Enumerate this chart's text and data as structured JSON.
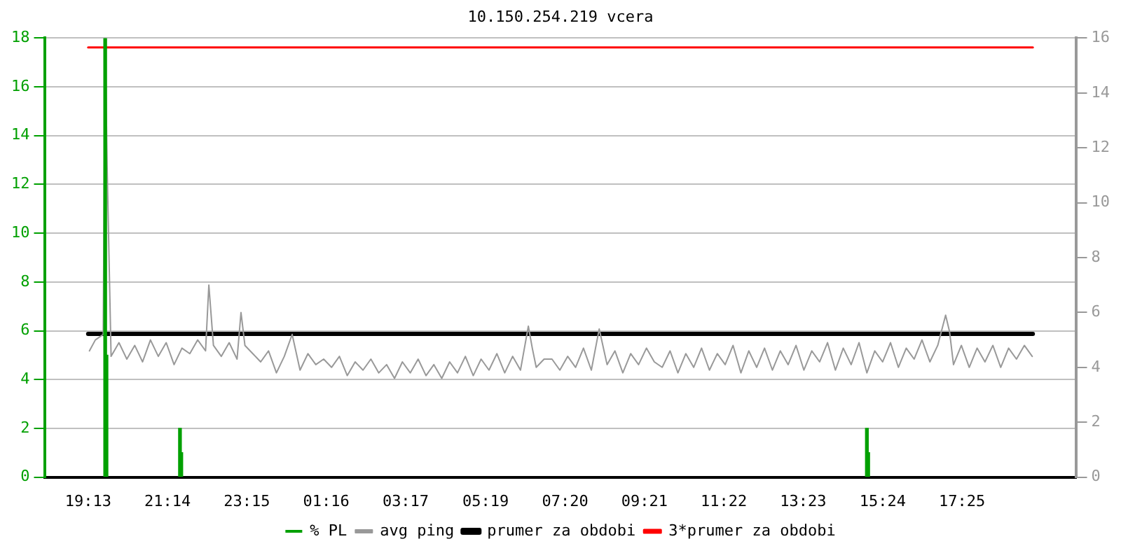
{
  "chart_data": {
    "type": "line",
    "title": "10.150.254.219 vcera",
    "xlim": [
      "--01-01T19:13",
      "--01-02T19:13"
    ],
    "xticks": [
      {
        "value": "--01-01T19:13",
        "label": "19:13"
      },
      {
        "value": "--01-01T21:14",
        "label": "21:14"
      },
      {
        "value": "--01-01T23:15",
        "label": "23:15"
      },
      {
        "value": "--01-02T01:16",
        "label": "01:16"
      },
      {
        "value": "--01-02T03:17",
        "label": "03:17"
      },
      {
        "value": "--01-02T05:19",
        "label": "05:19"
      },
      {
        "value": "--01-02T07:20",
        "label": "07:20"
      },
      {
        "value": "--01-02T09:21",
        "label": "09:21"
      },
      {
        "value": "--01-02T11:22",
        "label": "11:22"
      },
      {
        "value": "--01-02T13:23",
        "label": "13:23"
      },
      {
        "value": "--01-02T15:24",
        "label": "15:24"
      },
      {
        "value": "--01-02T17:25",
        "label": "17:25"
      }
    ],
    "ylim": [
      0,
      18
    ],
    "yticks": [
      0,
      2,
      4,
      6,
      8,
      10,
      12,
      14,
      16,
      18
    ],
    "y2lim": [
      0,
      16
    ],
    "y2ticks": [
      0,
      2,
      4,
      6,
      8,
      10,
      12,
      14,
      16
    ],
    "grid": "y",
    "legend": "bottom",
    "series": [
      {
        "name": "% PL",
        "type": "bar",
        "color": "#00a000",
        "x": [
          "--01-01T19:39",
          "--01-01T19:41",
          "--01-01T21:33",
          "--01-01T21:35",
          "--01-02T15:00",
          "--01-02T15:02"
        ],
        "values": [
          18,
          5,
          2,
          1,
          2,
          1
        ]
      },
      {
        "name": "avg ping",
        "axis": "y2",
        "color": "#999999",
        "x": [
          "--01-01T19:15",
          "--01-01T19:24",
          "--01-01T19:36",
          "--01-01T19:39",
          "--01-01T19:42",
          "--01-01T19:48",
          "--01-01T20:00",
          "--01-01T20:12",
          "--01-01T20:24",
          "--01-01T20:36",
          "--01-01T20:48",
          "--01-01T21:00",
          "--01-01T21:12",
          "--01-01T21:24",
          "--01-01T21:36",
          "--01-01T21:48",
          "--01-01T22:00",
          "--01-01T22:12",
          "--01-01T22:17",
          "--01-01T22:19",
          "--01-01T22:24",
          "--01-01T22:36",
          "--01-01T22:48",
          "--01-01T23:00",
          "--01-01T23:06",
          "--01-01T23:12",
          "--01-01T23:24",
          "--01-01T23:36",
          "--01-01T23:48",
          "--01-02T00:00",
          "--01-02T00:12",
          "--01-02T00:24",
          "--01-02T00:36",
          "--01-02T00:48",
          "--01-02T01:00",
          "--01-02T01:12",
          "--01-02T01:24",
          "--01-02T01:36",
          "--01-02T01:48",
          "--01-02T02:00",
          "--01-02T02:12",
          "--01-02T02:24",
          "--01-02T02:36",
          "--01-02T02:48",
          "--01-02T03:00",
          "--01-02T03:12",
          "--01-02T03:24",
          "--01-02T03:36",
          "--01-02T03:48",
          "--01-02T04:00",
          "--01-02T04:12",
          "--01-02T04:24",
          "--01-02T04:36",
          "--01-02T04:48",
          "--01-02T05:00",
          "--01-02T05:12",
          "--01-02T05:24",
          "--01-02T05:36",
          "--01-02T05:48",
          "--01-02T06:00",
          "--01-02T06:12",
          "--01-02T06:24",
          "--01-02T06:30",
          "--01-02T06:36",
          "--01-02T06:48",
          "--01-02T07:00",
          "--01-02T07:12",
          "--01-02T07:24",
          "--01-02T07:36",
          "--01-02T07:48",
          "--01-02T08:00",
          "--01-02T08:12",
          "--01-02T08:24",
          "--01-02T08:36",
          "--01-02T08:48",
          "--01-02T09:00",
          "--01-02T09:12",
          "--01-02T09:24",
          "--01-02T09:36",
          "--01-02T09:48",
          "--01-02T10:00",
          "--01-02T10:12",
          "--01-02T10:24",
          "--01-02T10:36",
          "--01-02T10:48",
          "--01-02T11:00",
          "--01-02T11:12",
          "--01-02T11:24",
          "--01-02T11:36",
          "--01-02T11:48",
          "--01-02T12:00",
          "--01-02T12:12",
          "--01-02T12:24",
          "--01-02T12:36",
          "--01-02T12:48",
          "--01-02T13:00",
          "--01-02T13:12",
          "--01-02T13:24",
          "--01-02T13:36",
          "--01-02T13:48",
          "--01-02T14:00",
          "--01-02T14:12",
          "--01-02T14:24",
          "--01-02T14:36",
          "--01-02T14:48",
          "--01-02T15:00",
          "--01-02T15:12",
          "--01-02T15:24",
          "--01-02T15:36",
          "--01-02T15:48",
          "--01-02T16:00",
          "--01-02T16:12",
          "--01-02T16:24",
          "--01-02T16:36",
          "--01-02T16:48",
          "--01-02T17:00",
          "--01-02T17:06",
          "--01-02T17:12",
          "--01-02T17:24",
          "--01-02T17:36",
          "--01-02T17:48",
          "--01-02T18:00",
          "--01-02T18:12",
          "--01-02T18:24",
          "--01-02T18:36",
          "--01-02T18:48",
          "--01-02T19:00",
          "--01-02T19:12"
        ],
        "values": [
          4.6,
          5.0,
          5.2,
          16,
          11.3,
          4.4,
          4.9,
          4.3,
          4.8,
          4.2,
          5.0,
          4.4,
          4.9,
          4.1,
          4.7,
          4.5,
          5.0,
          4.6,
          7.0,
          7.0,
          4.8,
          4.4,
          4.9,
          4.3,
          6.0,
          4.8,
          4.5,
          4.2,
          4.6,
          3.8,
          4.4,
          5.2,
          3.9,
          4.5,
          4.1,
          4.3,
          4.0,
          4.4,
          3.7,
          4.2,
          3.9,
          4.3,
          3.8,
          4.1,
          3.6,
          4.2,
          3.8,
          4.3,
          3.7,
          4.1,
          3.6,
          4.2,
          3.8,
          4.4,
          3.7,
          4.3,
          3.9,
          4.5,
          3.8,
          4.4,
          3.9,
          5.5,
          4.7,
          4.0,
          4.3,
          4.3,
          3.9,
          4.4,
          4.0,
          4.7,
          3.9,
          5.4,
          4.1,
          4.6,
          3.8,
          4.5,
          4.1,
          4.7,
          4.2,
          4.0,
          4.6,
          3.8,
          4.5,
          4.0,
          4.7,
          3.9,
          4.5,
          4.1,
          4.8,
          3.8,
          4.6,
          4.0,
          4.7,
          3.9,
          4.6,
          4.1,
          4.8,
          3.9,
          4.6,
          4.2,
          4.9,
          3.9,
          4.7,
          4.1,
          4.9,
          3.8,
          4.6,
          4.2,
          4.9,
          4.0,
          4.7,
          4.3,
          5.0,
          4.2,
          4.8,
          5.9,
          5.3,
          4.1,
          4.8,
          4.0,
          4.7,
          4.2,
          4.8,
          4.0,
          4.7,
          4.3,
          4.8,
          4.4
        ]
      }
    ],
    "ref_lines": [
      {
        "axis": "y2",
        "value": 5.22,
        "label": "prumer za obdobi",
        "color": "#000000"
      },
      {
        "axis": "y2",
        "value": 15.66,
        "label": "3*prumer za obdobi",
        "color": "#ff0000"
      }
    ]
  }
}
